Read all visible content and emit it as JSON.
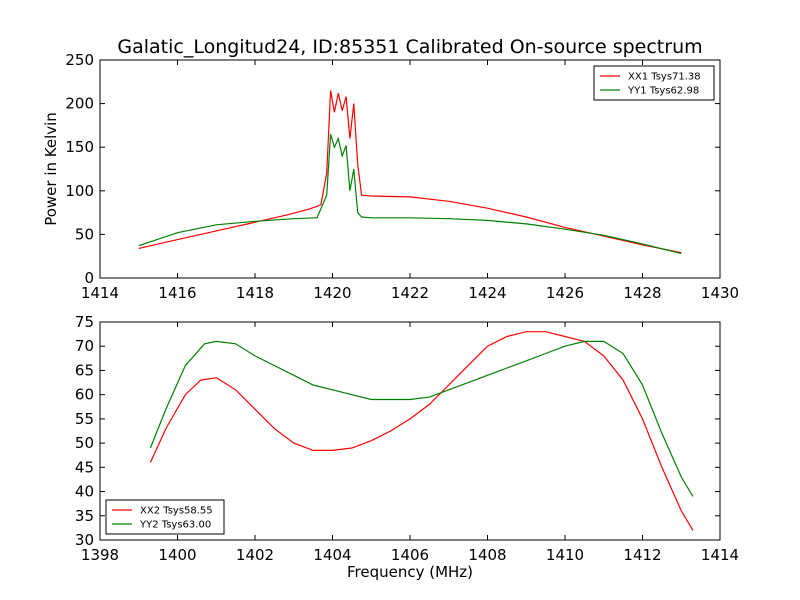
{
  "chart_data": [
    {
      "type": "line",
      "title": "Galatic_Longitud24, ID:85351 Calibrated On-source spectrum",
      "xlabel": "",
      "ylabel": "Power in Kelvin",
      "xlim": [
        1414,
        1430
      ],
      "ylim": [
        0,
        250
      ],
      "x_ticks": [
        1414,
        1416,
        1418,
        1420,
        1422,
        1424,
        1426,
        1428,
        1430
      ],
      "y_ticks": [
        0,
        50,
        100,
        150,
        200,
        250
      ],
      "grid": false,
      "legend_position": "top-right",
      "series": [
        {
          "name": "XX1 Tsys71.38",
          "color": "#ff0000",
          "points": [
            [
              1415.0,
              34
            ],
            [
              1416.0,
              44
            ],
            [
              1417.0,
              54
            ],
            [
              1418.0,
              64
            ],
            [
              1418.8,
              72
            ],
            [
              1419.4,
              79
            ],
            [
              1419.7,
              84
            ],
            [
              1419.85,
              120
            ],
            [
              1419.95,
              215
            ],
            [
              1420.05,
              190
            ],
            [
              1420.15,
              212
            ],
            [
              1420.25,
              192
            ],
            [
              1420.35,
              208
            ],
            [
              1420.45,
              160
            ],
            [
              1420.55,
              200
            ],
            [
              1420.65,
              130
            ],
            [
              1420.75,
              95
            ],
            [
              1421.0,
              94
            ],
            [
              1422.0,
              93
            ],
            [
              1423.0,
              88
            ],
            [
              1424.0,
              80
            ],
            [
              1425.0,
              70
            ],
            [
              1426.0,
              58
            ],
            [
              1427.0,
              48
            ],
            [
              1428.0,
              38
            ],
            [
              1429.0,
              29
            ]
          ]
        },
        {
          "name": "YY1 Tsys62.98",
          "color": "#008000",
          "points": [
            [
              1415.0,
              37
            ],
            [
              1416.0,
              52
            ],
            [
              1417.0,
              61
            ],
            [
              1418.0,
              65
            ],
            [
              1419.0,
              68
            ],
            [
              1419.6,
              69
            ],
            [
              1419.85,
              95
            ],
            [
              1419.95,
              165
            ],
            [
              1420.05,
              150
            ],
            [
              1420.15,
              160
            ],
            [
              1420.25,
              140
            ],
            [
              1420.35,
              152
            ],
            [
              1420.45,
              100
            ],
            [
              1420.55,
              125
            ],
            [
              1420.65,
              75
            ],
            [
              1420.75,
              70
            ],
            [
              1421.0,
              69
            ],
            [
              1422.0,
              69
            ],
            [
              1423.0,
              68
            ],
            [
              1424.0,
              66
            ],
            [
              1425.0,
              62
            ],
            [
              1426.0,
              56
            ],
            [
              1427.0,
              49
            ],
            [
              1428.0,
              39
            ],
            [
              1429.0,
              28
            ]
          ]
        }
      ]
    },
    {
      "type": "line",
      "title": "",
      "xlabel": "Frequency (MHz)",
      "ylabel": "",
      "xlim": [
        1398,
        1414
      ],
      "ylim": [
        30,
        75
      ],
      "x_ticks": [
        1398,
        1400,
        1402,
        1404,
        1406,
        1408,
        1410,
        1412,
        1414
      ],
      "y_ticks": [
        30,
        35,
        40,
        45,
        50,
        55,
        60,
        65,
        70,
        75
      ],
      "grid": false,
      "legend_position": "bottom-left",
      "series": [
        {
          "name": "XX2 Tsys58.55",
          "color": "#ff0000",
          "points": [
            [
              1399.3,
              46
            ],
            [
              1399.7,
              53
            ],
            [
              1400.2,
              60
            ],
            [
              1400.6,
              63
            ],
            [
              1401.0,
              63.5
            ],
            [
              1401.5,
              61
            ],
            [
              1402.0,
              57
            ],
            [
              1402.5,
              53
            ],
            [
              1403.0,
              50
            ],
            [
              1403.5,
              48.5
            ],
            [
              1404.0,
              48.5
            ],
            [
              1404.5,
              49
            ],
            [
              1405.0,
              50.5
            ],
            [
              1405.5,
              52.5
            ],
            [
              1406.0,
              55
            ],
            [
              1406.5,
              58
            ],
            [
              1407.0,
              62
            ],
            [
              1407.5,
              66
            ],
            [
              1408.0,
              70
            ],
            [
              1408.5,
              72
            ],
            [
              1409.0,
              73
            ],
            [
              1409.5,
              73
            ],
            [
              1410.0,
              72
            ],
            [
              1410.5,
              71
            ],
            [
              1411.0,
              68
            ],
            [
              1411.5,
              63
            ],
            [
              1412.0,
              55
            ],
            [
              1412.5,
              45
            ],
            [
              1413.0,
              36
            ],
            [
              1413.3,
              32
            ]
          ]
        },
        {
          "name": "YY2 Tsys63.00",
          "color": "#008000",
          "points": [
            [
              1399.3,
              49
            ],
            [
              1399.7,
              57
            ],
            [
              1400.2,
              66
            ],
            [
              1400.7,
              70.5
            ],
            [
              1401.0,
              71
            ],
            [
              1401.5,
              70.5
            ],
            [
              1402.0,
              68
            ],
            [
              1402.5,
              66
            ],
            [
              1403.0,
              64
            ],
            [
              1403.5,
              62
            ],
            [
              1404.0,
              61
            ],
            [
              1404.5,
              60
            ],
            [
              1405.0,
              59
            ],
            [
              1405.5,
              59
            ],
            [
              1406.0,
              59
            ],
            [
              1406.5,
              59.5
            ],
            [
              1407.0,
              61
            ],
            [
              1407.5,
              62.5
            ],
            [
              1408.0,
              64
            ],
            [
              1408.5,
              65.5
            ],
            [
              1409.0,
              67
            ],
            [
              1409.5,
              68.5
            ],
            [
              1410.0,
              70
            ],
            [
              1410.5,
              71
            ],
            [
              1411.0,
              71
            ],
            [
              1411.5,
              68.5
            ],
            [
              1412.0,
              62
            ],
            [
              1412.5,
              52
            ],
            [
              1413.0,
              43
            ],
            [
              1413.3,
              39
            ]
          ]
        }
      ]
    }
  ]
}
